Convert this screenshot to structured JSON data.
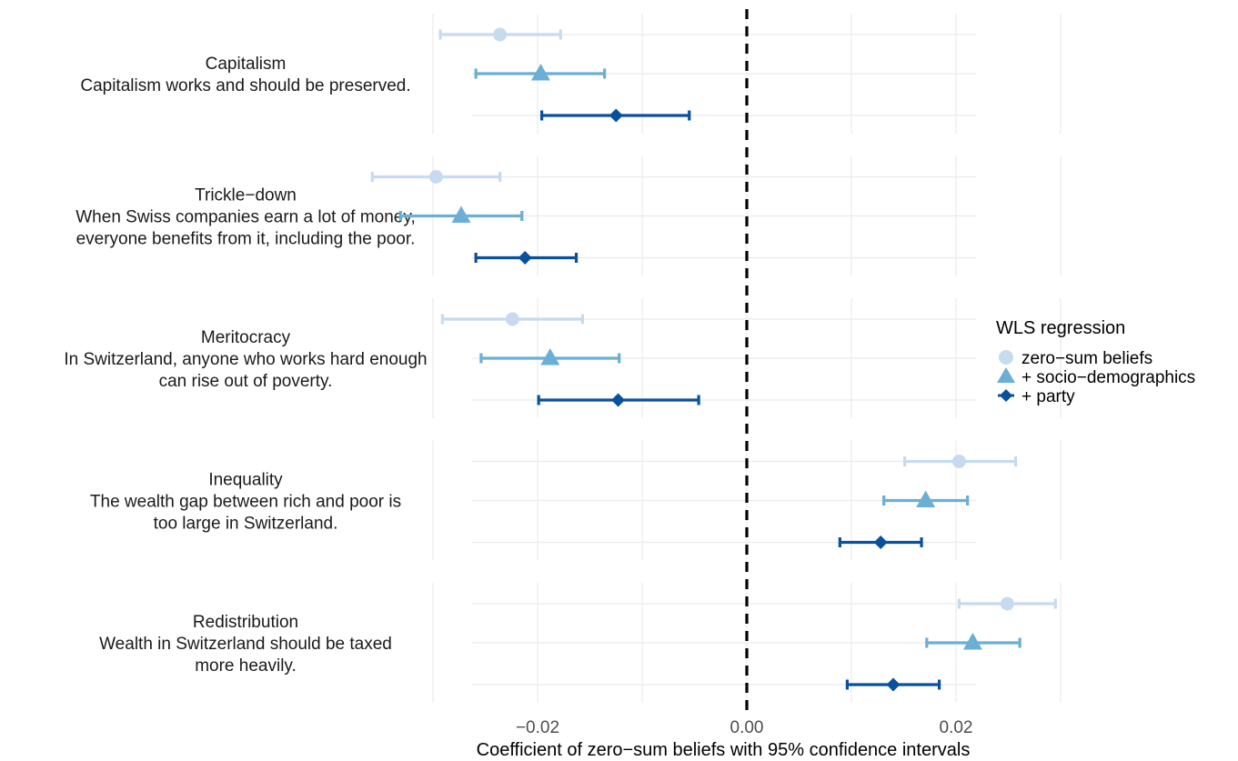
{
  "chart_data": {
    "type": "forest",
    "xlabel": "Coefficient of zero−sum beliefs with 95% confidence intervals",
    "ticks": [
      {
        "value": -0.02,
        "label": "−0.02"
      },
      {
        "value": 0.0,
        "label": "0.00"
      },
      {
        "value": 0.02,
        "label": "0.02"
      }
    ],
    "xlim": [
      -0.0395,
      0.033
    ],
    "reference_line": 0,
    "grid": true,
    "legend": {
      "title": "WLS regression",
      "position": "right"
    },
    "series": [
      {
        "name": "zero−sum beliefs",
        "shape": "circle",
        "color": "#c6dbef"
      },
      {
        "name": "+ socio−demographics",
        "shape": "triangle",
        "color": "#6baed6"
      },
      {
        "name": "+ party",
        "shape": "diamond",
        "color": "#08519c"
      }
    ],
    "panels": [
      {
        "label_lines": [
          "Capitalism",
          "Capitalism works and should be preserved."
        ],
        "estimates": [
          {
            "est": -0.0236,
            "lo": -0.0293,
            "hi": -0.0178
          },
          {
            "est": -0.0197,
            "lo": -0.0259,
            "hi": -0.0136
          },
          {
            "est": -0.0125,
            "lo": -0.0196,
            "hi": -0.0055
          }
        ]
      },
      {
        "label_lines": [
          "Trickle−down",
          "When Swiss companies earn a lot of money,",
          "everyone benefits from it, including the poor."
        ],
        "estimates": [
          {
            "est": -0.0297,
            "lo": -0.0358,
            "hi": -0.0236
          },
          {
            "est": -0.0273,
            "lo": -0.0331,
            "hi": -0.0215
          },
          {
            "est": -0.0212,
            "lo": -0.0259,
            "hi": -0.0163
          }
        ]
      },
      {
        "label_lines": [
          "Meritocracy",
          "In Switzerland, anyone who works hard enough",
          "can rise out of poverty."
        ],
        "estimates": [
          {
            "est": -0.0224,
            "lo": -0.0291,
            "hi": -0.0157
          },
          {
            "est": -0.0188,
            "lo": -0.0254,
            "hi": -0.0122
          },
          {
            "est": -0.0123,
            "lo": -0.0199,
            "hi": -0.0046
          }
        ]
      },
      {
        "label_lines": [
          "Inequality",
          "The wealth gap between rich and poor is",
          "too large in Switzerland."
        ],
        "estimates": [
          {
            "est": 0.0203,
            "lo": 0.0151,
            "hi": 0.0257
          },
          {
            "est": 0.0171,
            "lo": 0.0131,
            "hi": 0.0211
          },
          {
            "est": 0.0128,
            "lo": 0.0089,
            "hi": 0.0167
          }
        ]
      },
      {
        "label_lines": [
          "Redistribution",
          "Wealth in Switzerland should be taxed",
          "more heavily."
        ],
        "estimates": [
          {
            "est": 0.0249,
            "lo": 0.0203,
            "hi": 0.0295
          },
          {
            "est": 0.0216,
            "lo": 0.0172,
            "hi": 0.0261
          },
          {
            "est": 0.014,
            "lo": 0.0096,
            "hi": 0.0184
          }
        ]
      }
    ]
  }
}
